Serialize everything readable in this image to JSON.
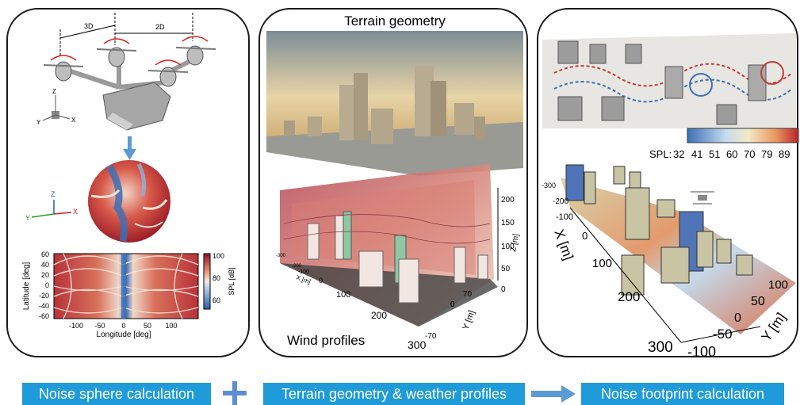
{
  "left_panel": {
    "spacing_3d": "3D",
    "spacing_2d": "2D",
    "axis_z": "Z",
    "axis_y": "Y",
    "axis_x": "X",
    "sphere_axis_z": "Z",
    "sphere_axis_y": "Y",
    "sphere_axis_x": "X",
    "map_ylabel": "Latitude [deg]",
    "map_xlabel": "Longitude [deg]",
    "map_yticks": [
      "60",
      "40",
      "20",
      "0",
      "-20",
      "-40",
      "-60"
    ],
    "map_xticks": [
      "-100",
      "-50",
      "0",
      "50",
      "100"
    ],
    "colorbar_label": "SPL [dB]",
    "colorbar_ticks": [
      "100",
      "80",
      "60"
    ]
  },
  "middle_panel": {
    "title": "Terrain geometry",
    "caption": "Wind profiles",
    "z_axis_label": "Z [m]",
    "z_ticks": [
      "200",
      "150",
      "100",
      "50",
      "0"
    ],
    "x_axis_label": "X [m]",
    "x_ticks": [
      "-300",
      "-200",
      "-100",
      "0",
      "100",
      "200",
      "300"
    ],
    "y_axis_label": "Y [m]",
    "y_ticks": [
      "70",
      "0",
      "-70"
    ]
  },
  "right_panel": {
    "spl_label": "SPL:",
    "spl_ticks": [
      "32",
      "41",
      "51",
      "60",
      "70",
      "79",
      "89"
    ],
    "x_axis_label": "X [m]",
    "x_ticks": [
      "-300",
      "-200",
      "-100",
      "0",
      "100",
      "200",
      "300"
    ],
    "y_axis_label": "Y [m]",
    "y_ticks": [
      "100",
      "50",
      "0",
      "-50",
      "-100"
    ]
  },
  "bottom": {
    "noise_sphere": "Noise sphere calculation",
    "terrain_weather": "Terrain geometry & weather profiles",
    "noise_footprint": "Noise footprint calculation"
  },
  "colors": {
    "label_bg": "#1f9bd9",
    "plus": "#5b8fd1",
    "arrow": "#5b9bd5"
  }
}
